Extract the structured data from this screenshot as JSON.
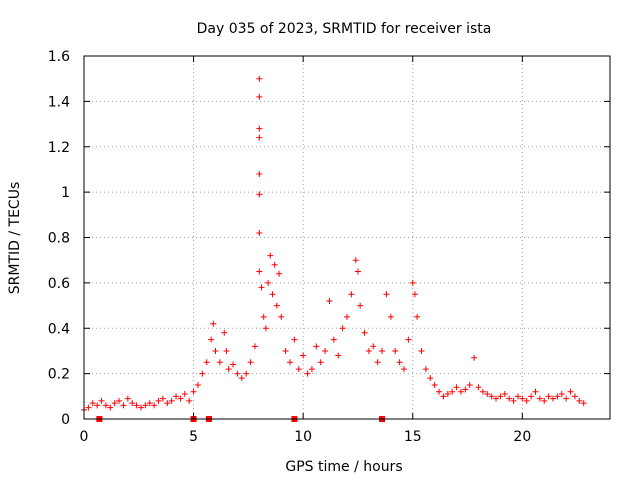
{
  "chart_data": {
    "type": "scatter",
    "title": "Day 035 of 2023, SRMTID for receiver ista",
    "xlabel": "GPS time / hours",
    "ylabel": "SRMTID / TECUs",
    "xlim": [
      0,
      24
    ],
    "ylim": [
      0,
      1.6
    ],
    "x_ticks": [
      0,
      5,
      10,
      15,
      20
    ],
    "x_tick_labels": [
      "0",
      "5",
      "10",
      "15",
      "20"
    ],
    "y_ticks": [
      0,
      0.2,
      0.4,
      0.6,
      0.8,
      1,
      1.2,
      1.4,
      1.6
    ],
    "y_tick_labels": [
      "0",
      "0.2",
      "0.4",
      "0.6",
      "0.8",
      "1",
      "1.2",
      "1.4",
      "1.6"
    ],
    "grid": true,
    "marker": "plus",
    "color": "#ff0000",
    "baseline_markers_x": [
      0.7,
      5.0,
      5.7,
      9.6,
      13.6
    ],
    "series": [
      {
        "name": "SRMTID",
        "points": [
          [
            0.0,
            0.04
          ],
          [
            0.2,
            0.05
          ],
          [
            0.4,
            0.07
          ],
          [
            0.6,
            0.06
          ],
          [
            0.8,
            0.08
          ],
          [
            1.0,
            0.06
          ],
          [
            1.2,
            0.05
          ],
          [
            1.4,
            0.07
          ],
          [
            1.6,
            0.08
          ],
          [
            1.8,
            0.06
          ],
          [
            2.0,
            0.09
          ],
          [
            2.2,
            0.07
          ],
          [
            2.4,
            0.06
          ],
          [
            2.6,
            0.05
          ],
          [
            2.8,
            0.06
          ],
          [
            3.0,
            0.07
          ],
          [
            3.2,
            0.06
          ],
          [
            3.4,
            0.08
          ],
          [
            3.6,
            0.09
          ],
          [
            3.8,
            0.07
          ],
          [
            4.0,
            0.08
          ],
          [
            4.2,
            0.1
          ],
          [
            4.4,
            0.09
          ],
          [
            4.6,
            0.11
          ],
          [
            4.8,
            0.08
          ],
          [
            5.0,
            0.12
          ],
          [
            5.2,
            0.15
          ],
          [
            5.4,
            0.2
          ],
          [
            5.6,
            0.25
          ],
          [
            5.8,
            0.35
          ],
          [
            5.9,
            0.42
          ],
          [
            6.0,
            0.3
          ],
          [
            6.2,
            0.25
          ],
          [
            6.4,
            0.38
          ],
          [
            6.5,
            0.3
          ],
          [
            6.6,
            0.22
          ],
          [
            6.8,
            0.24
          ],
          [
            7.0,
            0.2
          ],
          [
            7.2,
            0.18
          ],
          [
            7.4,
            0.2
          ],
          [
            7.6,
            0.25
          ],
          [
            7.8,
            0.32
          ],
          [
            8.0,
            1.5
          ],
          [
            8.0,
            1.42
          ],
          [
            8.0,
            1.28
          ],
          [
            8.0,
            1.24
          ],
          [
            8.0,
            1.08
          ],
          [
            8.0,
            0.99
          ],
          [
            8.0,
            0.82
          ],
          [
            8.0,
            0.65
          ],
          [
            8.1,
            0.58
          ],
          [
            8.2,
            0.45
          ],
          [
            8.3,
            0.4
          ],
          [
            8.4,
            0.6
          ],
          [
            8.5,
            0.72
          ],
          [
            8.6,
            0.55
          ],
          [
            8.7,
            0.68
          ],
          [
            8.8,
            0.5
          ],
          [
            8.9,
            0.64
          ],
          [
            9.0,
            0.45
          ],
          [
            9.2,
            0.3
          ],
          [
            9.4,
            0.25
          ],
          [
            9.6,
            0.35
          ],
          [
            9.8,
            0.22
          ],
          [
            10.0,
            0.28
          ],
          [
            10.2,
            0.2
          ],
          [
            10.4,
            0.22
          ],
          [
            10.6,
            0.32
          ],
          [
            10.8,
            0.25
          ],
          [
            11.0,
            0.3
          ],
          [
            11.2,
            0.52
          ],
          [
            11.4,
            0.35
          ],
          [
            11.6,
            0.28
          ],
          [
            11.8,
            0.4
          ],
          [
            12.0,
            0.45
          ],
          [
            12.2,
            0.55
          ],
          [
            12.4,
            0.7
          ],
          [
            12.5,
            0.65
          ],
          [
            12.6,
            0.5
          ],
          [
            12.8,
            0.38
          ],
          [
            13.0,
            0.3
          ],
          [
            13.2,
            0.32
          ],
          [
            13.4,
            0.25
          ],
          [
            13.6,
            0.3
          ],
          [
            13.8,
            0.55
          ],
          [
            14.0,
            0.45
          ],
          [
            14.2,
            0.3
          ],
          [
            14.4,
            0.25
          ],
          [
            14.6,
            0.22
          ],
          [
            14.8,
            0.35
          ],
          [
            15.0,
            0.6
          ],
          [
            15.1,
            0.55
          ],
          [
            15.2,
            0.45
          ],
          [
            15.4,
            0.3
          ],
          [
            15.6,
            0.22
          ],
          [
            15.8,
            0.18
          ],
          [
            16.0,
            0.15
          ],
          [
            16.2,
            0.12
          ],
          [
            16.4,
            0.1
          ],
          [
            16.6,
            0.11
          ],
          [
            16.8,
            0.12
          ],
          [
            17.0,
            0.14
          ],
          [
            17.2,
            0.12
          ],
          [
            17.4,
            0.13
          ],
          [
            17.6,
            0.15
          ],
          [
            17.8,
            0.27
          ],
          [
            18.0,
            0.14
          ],
          [
            18.2,
            0.12
          ],
          [
            18.4,
            0.11
          ],
          [
            18.6,
            0.1
          ],
          [
            18.8,
            0.09
          ],
          [
            19.0,
            0.1
          ],
          [
            19.2,
            0.11
          ],
          [
            19.4,
            0.09
          ],
          [
            19.6,
            0.08
          ],
          [
            19.8,
            0.1
          ],
          [
            20.0,
            0.09
          ],
          [
            20.2,
            0.08
          ],
          [
            20.4,
            0.1
          ],
          [
            20.6,
            0.12
          ],
          [
            20.8,
            0.09
          ],
          [
            21.0,
            0.08
          ],
          [
            21.2,
            0.1
          ],
          [
            21.4,
            0.09
          ],
          [
            21.6,
            0.1
          ],
          [
            21.8,
            0.11
          ],
          [
            22.0,
            0.09
          ],
          [
            22.2,
            0.12
          ],
          [
            22.4,
            0.1
          ],
          [
            22.6,
            0.08
          ],
          [
            22.8,
            0.07
          ]
        ]
      }
    ]
  }
}
